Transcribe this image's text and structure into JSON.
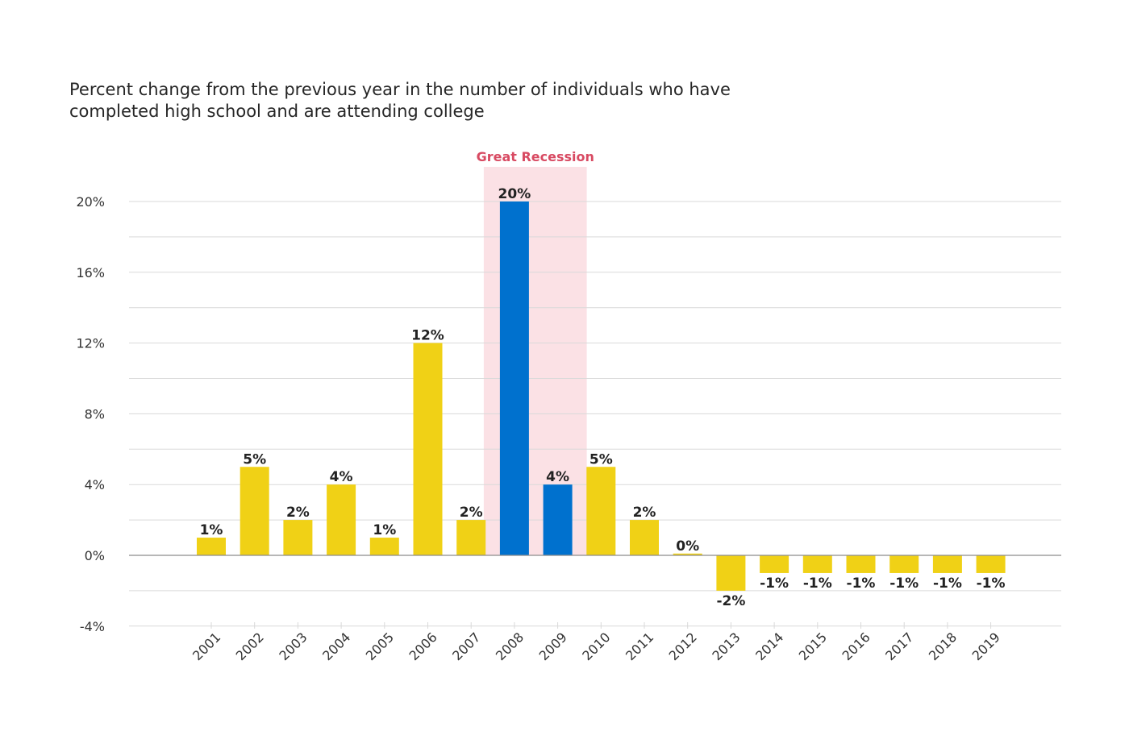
{
  "title": "Percent change from the previous year in the number of individuals who have completed high school and are attending college",
  "colors": {
    "default_bar": "#f0d116",
    "highlight_bar": "#0071ce",
    "band_fill": "#fbe1e5",
    "band_label": "#d84a62",
    "grid": "#d9d9d9",
    "zero_line": "#8c8c8c"
  },
  "chart_data": {
    "type": "bar",
    "title": "Percent change from the previous year in the number of individuals who have completed high school and are attending college",
    "xlabel": "",
    "ylabel": "",
    "ylim": [
      -4,
      20
    ],
    "y_ticks": [
      20,
      16,
      12,
      8,
      4,
      0,
      -4
    ],
    "y_tick_labels": [
      "20%",
      "16%",
      "12%",
      "8%",
      "4%",
      "0%",
      "-4%"
    ],
    "grid": true,
    "categories": [
      "2001",
      "2002",
      "2003",
      "2004",
      "2005",
      "2006",
      "2007",
      "2008",
      "2009",
      "2010",
      "2011",
      "2012",
      "2013",
      "2014",
      "2015",
      "2016",
      "2017",
      "2018",
      "2019"
    ],
    "values": [
      1,
      5,
      2,
      4,
      1,
      12,
      2,
      20,
      4,
      5,
      2,
      0.1,
      -2,
      -1,
      -1,
      -1,
      -1,
      -1,
      -1
    ],
    "data_labels": [
      "1%",
      "5%",
      "2%",
      "4%",
      "1%",
      "12%",
      "2%",
      "20%",
      "4%",
      "5%",
      "2%",
      "0%",
      "-2%",
      "-1%",
      "-1%",
      "-1%",
      "-1%",
      "-1%",
      "-1%"
    ],
    "highlighted": [
      "2008",
      "2009"
    ],
    "annotations": [
      {
        "type": "band",
        "label": "Great Recession",
        "from": "2008",
        "to": "2009"
      }
    ]
  }
}
